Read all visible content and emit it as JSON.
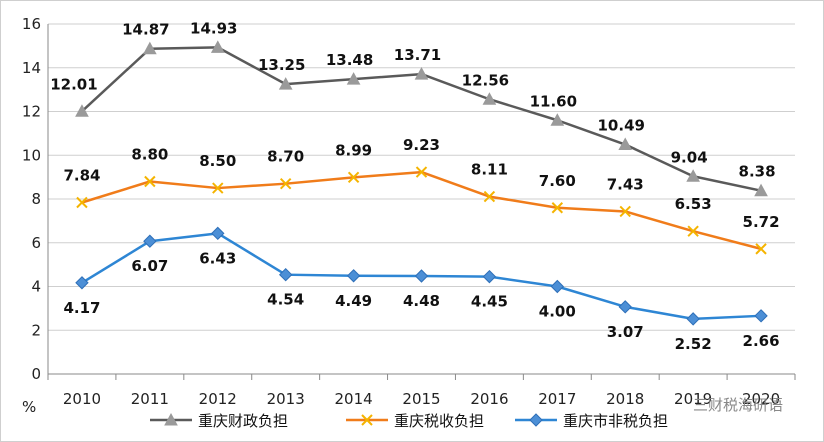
{
  "chart_data": {
    "type": "line",
    "categories": [
      "2010",
      "2011",
      "2012",
      "2013",
      "2014",
      "2015",
      "2016",
      "2017",
      "2018",
      "2019",
      "2020"
    ],
    "ylim": [
      0,
      16
    ],
    "yticks": [
      0,
      2,
      4,
      6,
      8,
      10,
      12,
      14,
      16
    ],
    "ylabel": "%",
    "grid": true,
    "legend_position": "bottom",
    "series": [
      {
        "name": "重庆财政负担",
        "color": "#5a5a5a",
        "marker": "triangle",
        "values": [
          12.01,
          14.87,
          14.93,
          13.25,
          13.48,
          13.71,
          12.56,
          11.6,
          10.49,
          9.04,
          8.38
        ],
        "labels": [
          "12.01",
          "14.87",
          "14.93",
          "13.25",
          "13.48",
          "13.71",
          "12.56",
          "11.60",
          "10.49",
          "9.04",
          "8.38"
        ]
      },
      {
        "name": "重庆税收负担",
        "color": "#f07c1a",
        "marker": "x",
        "values": [
          7.84,
          8.8,
          8.5,
          8.7,
          8.99,
          9.23,
          8.11,
          7.6,
          7.43,
          6.53,
          5.72
        ],
        "labels": [
          "7.84",
          "8.80",
          "8.50",
          "8.70",
          "8.99",
          "9.23",
          "8.11",
          "7.60",
          "7.43",
          "6.53",
          "5.72"
        ]
      },
      {
        "name": "重庆市非税负担",
        "color": "#2e86d4",
        "marker": "diamond",
        "values": [
          4.17,
          6.07,
          6.43,
          4.54,
          4.49,
          4.48,
          4.45,
          4.0,
          3.07,
          2.52,
          2.66
        ],
        "labels": [
          "4.17",
          "6.07",
          "6.43",
          "4.54",
          "4.49",
          "4.48",
          "4.45",
          "4.00",
          "3.07",
          "2.52",
          "2.66"
        ]
      }
    ]
  },
  "watermark": "三财税海研语"
}
